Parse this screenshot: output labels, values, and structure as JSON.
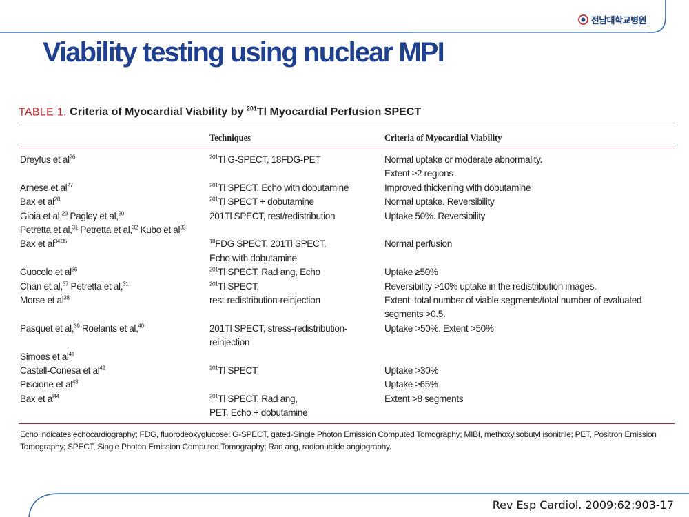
{
  "header": {
    "logo_text": "전남대학교병원",
    "logo_icon": "hospital-emblem-icon"
  },
  "slide": {
    "title": "Viability testing using nuclear MPI"
  },
  "table": {
    "label": "TABLE 1.",
    "caption_pre": "Criteria of Myocardial Viability by ",
    "caption_sup": "201",
    "caption_post": "Tl Myocardial Perfusion SPECT",
    "columns": [
      "",
      "Techniques",
      "Criteria of Myocardial Viability"
    ],
    "rows": [
      {
        "study": [
          [
            {
              "t": "Dreyfus et al"
            },
            {
              "s": "26"
            }
          ]
        ],
        "tech": [
          [
            {
              "s": "201"
            },
            {
              "t": "Tl G-SPECT, 18FDG-PET"
            }
          ]
        ],
        "crit": [
          [
            {
              "t": "Normal uptake or moderate abnormality."
            }
          ],
          [
            {
              "t": "Extent ≥2 regions"
            }
          ]
        ]
      },
      {
        "study": [
          [
            {
              "t": "Arnese et al"
            },
            {
              "s": "27"
            }
          ]
        ],
        "tech": [
          [
            {
              "s": "201"
            },
            {
              "t": "Tl SPECT, Echo with dobutamine"
            }
          ]
        ],
        "crit": [
          [
            {
              "t": "Improved thickening with dobutamine"
            }
          ]
        ]
      },
      {
        "study": [
          [
            {
              "t": "Bax et al"
            },
            {
              "s": "28"
            }
          ]
        ],
        "tech": [
          [
            {
              "s": "201"
            },
            {
              "t": "Tl SPECT + dobutamine"
            }
          ]
        ],
        "crit": [
          [
            {
              "t": "Normal uptake. Reversibility"
            }
          ]
        ]
      },
      {
        "study": [
          [
            {
              "t": "Gioia et al,"
            },
            {
              "s": "29"
            },
            {
              "t": " Pagley et al,"
            },
            {
              "s": "30"
            }
          ],
          [
            {
              "t": "Petretta et al,"
            },
            {
              "s": "31"
            },
            {
              "t": " Petretta et al,"
            },
            {
              "s": "32"
            },
            {
              "t": " Kubo et al"
            },
            {
              "s": "33"
            }
          ]
        ],
        "tech": [
          [
            {
              "t": "201Tl SPECT, rest/redistribution"
            }
          ]
        ],
        "crit": [
          [
            {
              "t": "Uptake 50%. Reversibility"
            }
          ]
        ]
      },
      {
        "study": [
          [
            {
              "t": "Bax et al"
            },
            {
              "s": "34,35"
            }
          ]
        ],
        "tech": [
          [
            {
              "s": "18"
            },
            {
              "t": "FDG SPECT, 201Tl SPECT,"
            }
          ],
          [
            {
              "t": "Echo with dobutamine"
            }
          ]
        ],
        "crit": [
          [
            {
              "t": "Normal perfusion"
            }
          ]
        ]
      },
      {
        "study": [
          [
            {
              "t": "Cuocolo et al"
            },
            {
              "s": "36"
            }
          ]
        ],
        "tech": [
          [
            {
              "s": "201"
            },
            {
              "t": "Tl SPECT, Rad ang, Echo"
            }
          ]
        ],
        "crit": [
          [
            {
              "t": "Uptake ≥50%"
            }
          ]
        ]
      },
      {
        "study": [
          [
            {
              "t": "Chan et al,"
            },
            {
              "s": "37"
            },
            {
              "t": " Petretta et al,"
            },
            {
              "s": "31"
            }
          ]
        ],
        "tech": [
          [
            {
              "s": "201"
            },
            {
              "t": "Tl SPECT,"
            }
          ]
        ],
        "crit": [
          [
            {
              "t": "Reversibility >10% uptake in the redistribution images."
            }
          ]
        ]
      },
      {
        "study": [
          [
            {
              "t": "Morse et al"
            },
            {
              "s": "38"
            }
          ]
        ],
        "tech": [
          [
            {
              "t": "rest-redistribution-reinjection"
            }
          ]
        ],
        "crit": [
          [
            {
              "t": "Extent: total number of viable segments/total number of evaluated"
            }
          ],
          [
            {
              "t": "segments >0.5."
            }
          ]
        ]
      },
      {
        "study": [
          [
            {
              "t": "Pasquet et al,"
            },
            {
              "s": "39"
            },
            {
              "t": " Roelants et al,"
            },
            {
              "s": "40"
            }
          ]
        ],
        "tech": [
          [
            {
              "t": "201Tl SPECT, stress-redistribution-"
            }
          ],
          [
            {
              "t": "reinjection"
            }
          ]
        ],
        "crit": [
          [
            {
              "t": "Uptake >50%. Extent >50%"
            }
          ]
        ]
      },
      {
        "study": [
          [
            {
              "t": "Simoes et al"
            },
            {
              "s": "41"
            }
          ]
        ],
        "tech": [],
        "crit": []
      },
      {
        "study": [
          [
            {
              "t": "Castell-Conesa et al"
            },
            {
              "s": "42"
            }
          ]
        ],
        "tech": [
          [
            {
              "s": "201"
            },
            {
              "t": "Tl SPECT"
            }
          ]
        ],
        "crit": [
          [
            {
              "t": "Uptake >30%"
            }
          ]
        ]
      },
      {
        "study": [
          [
            {
              "t": "Piscione et al"
            },
            {
              "s": "43"
            }
          ]
        ],
        "tech": [],
        "crit": [
          [
            {
              "t": "Uptake ≥65%"
            }
          ]
        ]
      },
      {
        "study": [
          [
            {
              "t": "Bax et a"
            },
            {
              "s": "l44"
            }
          ]
        ],
        "tech": [
          [
            {
              "s": "201"
            },
            {
              "t": "Tl SPECT, Rad ang,"
            }
          ],
          [
            {
              "t": "PET, Echo + dobutamine"
            }
          ]
        ],
        "crit": [
          [
            {
              "t": "Extent >8 segments"
            }
          ]
        ]
      }
    ],
    "footnote": "Echo indicates echocardiography; FDG, fluorodeoxyglucose; G-SPECT, gated-Single Photon Emission Computed Tomography; MIBI, methoxyisobutyl isonitrile; PET, Positron Emission Tomography; SPECT, Single Photon Emission Computed Tomography; Rad ang, radionuclide angiography."
  },
  "citation": "Rev Esp Cardiol. 2009;62:903-17",
  "colors": {
    "title": "#1f3f8f",
    "table_label": "#c0262d",
    "rule": "#a3333a",
    "decor_line": "#3a6ea8"
  }
}
